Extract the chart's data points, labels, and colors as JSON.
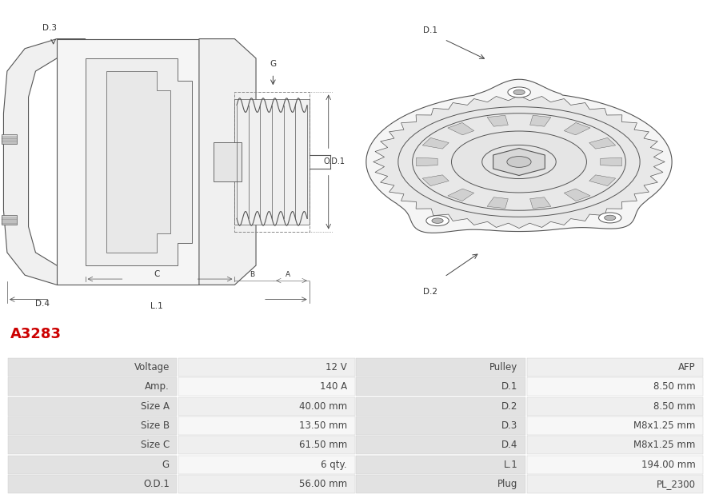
{
  "title": "A3283",
  "title_color": "#cc0000",
  "background_color": "#ffffff",
  "table": {
    "rows": [
      [
        "Voltage",
        "12 V",
        "Pulley",
        "AFP"
      ],
      [
        "Amp.",
        "140 A",
        "D.1",
        "8.50 mm"
      ],
      [
        "Size A",
        "40.00 mm",
        "D.2",
        "8.50 mm"
      ],
      [
        "Size B",
        "13.50 mm",
        "D.3",
        "M8x1.25 mm"
      ],
      [
        "Size C",
        "61.50 mm",
        "D.4",
        "M8x1.25 mm"
      ],
      [
        "G",
        "6 qty.",
        "L.1",
        "194.00 mm"
      ],
      [
        "O.D.1",
        "56.00 mm",
        "Plug",
        "PL_2300"
      ]
    ],
    "text_color": "#444444",
    "label_bg": "#e2e2e2",
    "value_bg_odd": "#efefef",
    "value_bg_even": "#f7f7f7"
  }
}
